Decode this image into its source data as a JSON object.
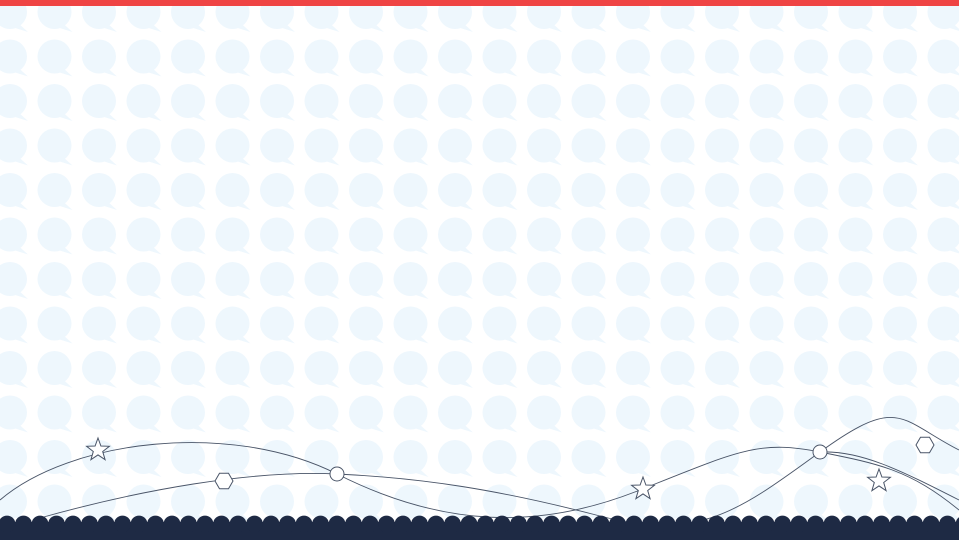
{
  "theme": {
    "accent_bar": "#EF4444",
    "bubble": "#EEF7FD",
    "background": "#FFFFFF",
    "footer": "#1E2A44",
    "line": "#4A5568",
    "marker_fill": "#FFFFFF"
  },
  "decorations": {
    "pattern_icon": "speech-bubble-icon",
    "marker_icons": [
      "star-icon",
      "hexagon-icon",
      "circle-icon"
    ]
  }
}
